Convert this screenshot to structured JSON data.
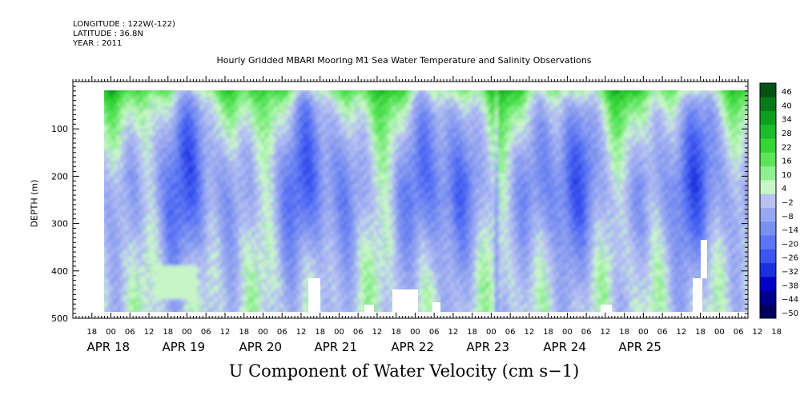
{
  "header": {
    "longitude": "LONGITUDE : 122W(-122)",
    "latitude": "LATITUDE : 36.8N",
    "year": "YEAR : 2011"
  },
  "chart_data": {
    "type": "heatmap",
    "title": "Hourly Gridded MBARI Mooring M1 Sea Water Temperature and Salinity Observations",
    "xlabel": "U Component of Water Velocity (cm s−1)",
    "ylabel": "DEPTH (m)",
    "ylim": [
      500,
      0
    ],
    "y_ticks": [
      100,
      200,
      300,
      400,
      500
    ],
    "x_range_hours": [
      "2011-04-17 12:00",
      "2011-04-25 21:00"
    ],
    "x_hour_ticks": [
      "18",
      "00",
      "06",
      "12",
      "18",
      "00",
      "06",
      "12",
      "18",
      "00",
      "06",
      "12",
      "18",
      "00",
      "06",
      "12",
      "18",
      "00",
      "06",
      "12",
      "18",
      "00",
      "06",
      "12",
      "18",
      "00",
      "06",
      "12",
      "18",
      "00",
      "06",
      "12",
      "18",
      "00",
      "06",
      "12",
      "18"
    ],
    "x_day_labels": [
      "APR 18",
      "APR 19",
      "APR 20",
      "APR 21",
      "APR 22",
      "APR 23",
      "APR 24",
      "APR 25"
    ],
    "colorbar": {
      "levels": [
        -50,
        -44,
        -38,
        -32,
        -26,
        -20,
        -14,
        -8,
        -2,
        4,
        10,
        16,
        22,
        28,
        34,
        40,
        46
      ],
      "labels": [
        "46",
        "40",
        "34",
        "28",
        "22",
        "16",
        "10",
        "4",
        "−2",
        "−8",
        "−14",
        "−20",
        "−26",
        "−32",
        "−38",
        "−44",
        "−50"
      ],
      "colors": [
        "#000060",
        "#00008f",
        "#0000c8",
        "#1a30e0",
        "#3a55f0",
        "#5a75f5",
        "#7a90f0",
        "#98a8f0",
        "#b8c2f2",
        "#c8f5c8",
        "#8ef08e",
        "#5ce55c",
        "#34d534",
        "#1cbd2c",
        "#0e9e20",
        "#067a18",
        "#045212"
      ]
    },
    "data_extent": {
      "x_start": "2011-04-18 02:00",
      "depth_top_m": 16,
      "depth_bottom_m": 486
    },
    "notes": "Depth-time section of eastward velocity; predominantly weak negative (blue, -2 to -20) at mid-depths and positive (green, 4 to 22) near the surface and in vertical bands."
  }
}
